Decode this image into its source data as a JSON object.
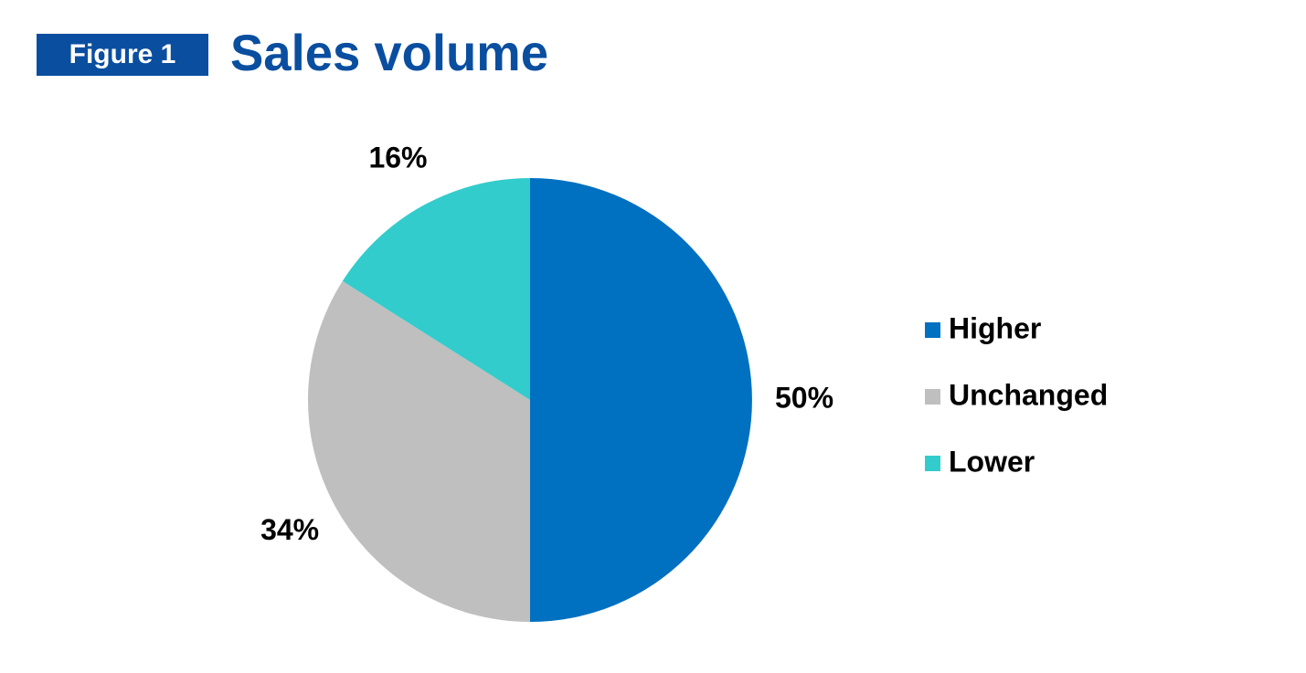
{
  "chart_data": {
    "type": "pie",
    "figure_label": "Figure 1",
    "title": "Sales volume",
    "categories": [
      "Higher",
      "Unchanged",
      "Lower"
    ],
    "values": [
      50,
      34,
      16
    ],
    "value_labels": [
      "50%",
      "34%",
      "16%"
    ],
    "colors": [
      "#0070c0",
      "#bfbfbf",
      "#33cccc"
    ],
    "legend": "right"
  }
}
